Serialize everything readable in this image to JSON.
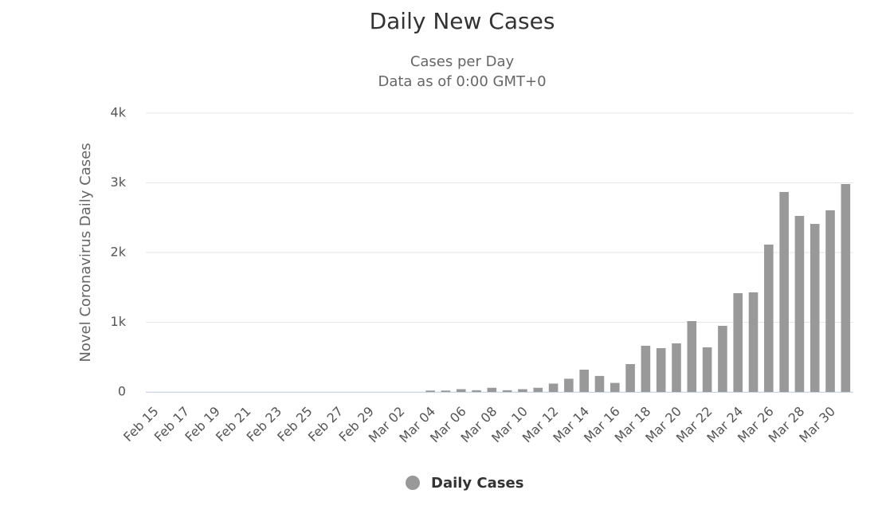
{
  "chart_data": {
    "type": "bar",
    "title": "Daily New Cases",
    "subtitle": [
      "Cases per Day",
      "Data as of 0:00 GMT+0"
    ],
    "y_axis_label": "Novel Coronavirus Daily Cases",
    "categories": [
      "Feb 15",
      null,
      "Feb 17",
      null,
      "Feb 19",
      null,
      "Feb 21",
      null,
      "Feb 23",
      null,
      "Feb 25",
      null,
      "Feb 27",
      null,
      "Feb 29",
      null,
      "Mar 02",
      null,
      "Mar 04",
      null,
      "Mar 06",
      null,
      "Mar 08",
      null,
      "Mar 10",
      null,
      "Mar 12",
      null,
      "Mar 14",
      null,
      "Mar 16",
      null,
      "Mar 18",
      null,
      "Mar 20",
      null,
      "Mar 22",
      null,
      "Mar 24",
      null,
      "Mar 26",
      null,
      "Mar 28",
      null,
      "Mar 30",
      null
    ],
    "series": [
      {
        "name": "Daily Cases",
        "color": "#999999",
        "values": [
          0,
          0,
          0,
          0,
          0,
          0,
          0,
          0,
          0,
          0,
          0,
          0,
          0,
          0,
          0,
          0,
          0,
          0,
          20,
          20,
          40,
          25,
          60,
          25,
          40,
          60,
          120,
          190,
          320,
          230,
          130,
          400,
          663,
          629,
          697,
          1017,
          640,
          949,
          1417,
          1429,
          2114,
          2869,
          2526,
          2411,
          2606,
          2983
        ]
      }
    ],
    "ylim": [
      0,
      4000
    ],
    "yticks": [
      0,
      {
        "value": 1000,
        "label": "1k"
      },
      {
        "value": 2000,
        "label": "2k"
      },
      {
        "value": 3000,
        "label": "3k"
      },
      {
        "value": 4000,
        "label": "4k"
      }
    ],
    "grid": true
  }
}
